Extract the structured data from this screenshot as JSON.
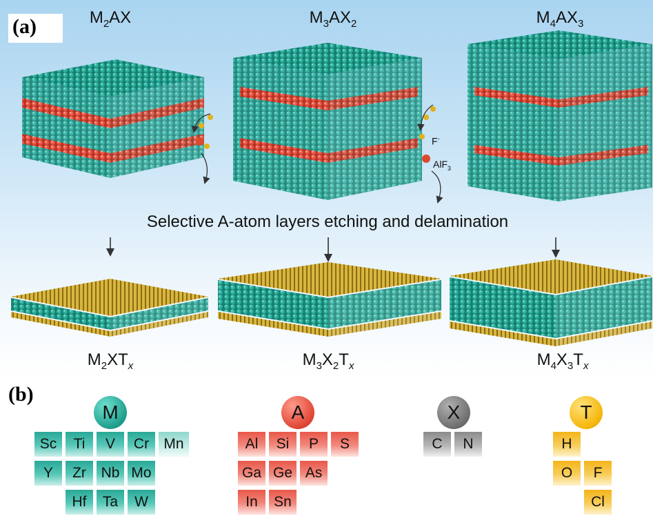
{
  "panel_a": {
    "label": "(a)",
    "phases": [
      {
        "pre": "M",
        "s1": "2",
        "mid": "AX",
        "s2": ""
      },
      {
        "pre": "M",
        "s1": "3",
        "mid": "AX",
        "s2": "2"
      },
      {
        "pre": "M",
        "s1": "4",
        "mid": "AX",
        "s2": "3"
      }
    ],
    "ions": {
      "fluoride": "F",
      "fluoride_sup": "-",
      "alf3_pre": "AlF",
      "alf3_sub": "3"
    },
    "caption": "Selective A-atom layers etching and delamination",
    "mxenes": [
      {
        "a": "M",
        "a_sub": "2",
        "b": "XT",
        "b_sub": "",
        "x": "x"
      },
      {
        "a": "M",
        "a_sub": "3",
        "b": "X",
        "b_sub": "2",
        "c": "T",
        "x": "x"
      },
      {
        "a": "M",
        "a_sub": "4",
        "b": "X",
        "b_sub": "3",
        "c": "T",
        "x": "x"
      }
    ]
  },
  "panel_b": {
    "label": "(b)",
    "groups": {
      "M": {
        "title": "M",
        "elements": [
          "Sc",
          "Ti",
          "V",
          "Cr",
          "Mn",
          "Y",
          "Zr",
          "Nb",
          "Mo",
          "Hf",
          "Ta",
          "W"
        ]
      },
      "A": {
        "title": "A",
        "elements": [
          "Al",
          "Si",
          "P",
          "S",
          "Ga",
          "Ge",
          "As",
          "In",
          "Sn"
        ]
      },
      "X": {
        "title": "X",
        "elements": [
          "C",
          "N"
        ]
      },
      "T": {
        "title": "T",
        "elements": [
          "H",
          "O",
          "F",
          "Cl"
        ]
      }
    }
  },
  "colors": {
    "M": "#1e9e8c",
    "A": "#e04535",
    "X": "#6e6e6e",
    "T": "#f5b60a"
  }
}
